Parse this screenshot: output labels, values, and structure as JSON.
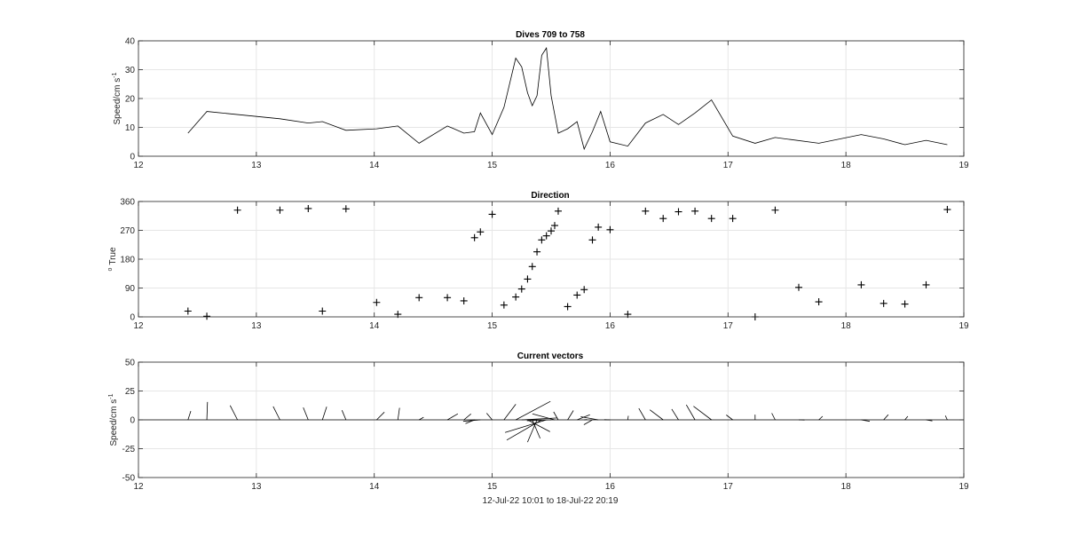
{
  "figure_xlabel": "12-Jul-22 10:01 to 18-Jul-22 20:19",
  "chart_data": [
    {
      "type": "line",
      "title": "Dives 709 to 758",
      "ylabel": "Speed/cm s",
      "ylabel_superscript": "-1",
      "xlim": [
        12,
        19
      ],
      "ylim": [
        0,
        40
      ],
      "xticks": [
        12,
        13,
        14,
        15,
        16,
        17,
        18,
        19
      ],
      "yticks": [
        0,
        10,
        20,
        30,
        40
      ],
      "grid": true,
      "color": "#000000",
      "x": [
        12.42,
        12.58,
        13.2,
        13.44,
        13.56,
        13.76,
        14.02,
        14.2,
        14.38,
        14.62,
        14.76,
        14.85,
        14.9,
        15.0,
        15.1,
        15.2,
        15.25,
        15.3,
        15.34,
        15.38,
        15.42,
        15.46,
        15.5,
        15.56,
        15.64,
        15.72,
        15.78,
        15.85,
        15.92,
        16.0,
        16.15,
        16.3,
        16.45,
        16.58,
        16.72,
        16.86,
        17.04,
        17.23,
        17.4,
        17.77,
        18.13,
        18.32,
        18.5,
        18.68,
        18.86
      ],
      "values": [
        8,
        15.5,
        13,
        11.5,
        12,
        9,
        9.5,
        10.5,
        4.5,
        10.5,
        8,
        8.5,
        15,
        7.5,
        17,
        34,
        31,
        22,
        17.5,
        21,
        35,
        37.5,
        21,
        8,
        9.5,
        12,
        2.5,
        8.5,
        15.5,
        5,
        3.5,
        11.5,
        14.5,
        11,
        15,
        19.5,
        7,
        4.5,
        6.5,
        4.5,
        7.5,
        6,
        4,
        5.5,
        4
      ]
    },
    {
      "type": "scatter",
      "title": "Direction",
      "ylabel": "True",
      "ylabel_prefix": "o",
      "xlim": [
        12,
        19
      ],
      "ylim": [
        0,
        360
      ],
      "xticks": [
        12,
        13,
        14,
        15,
        16,
        17,
        18,
        19
      ],
      "yticks": [
        0,
        90,
        180,
        270,
        360
      ],
      "grid": true,
      "marker": "+",
      "color": "#000000",
      "x": [
        12.42,
        12.58,
        12.84,
        13.2,
        13.44,
        13.56,
        13.76,
        14.02,
        14.2,
        14.38,
        14.62,
        14.76,
        14.85,
        14.9,
        15.0,
        15.1,
        15.2,
        15.25,
        15.3,
        15.34,
        15.38,
        15.42,
        15.46,
        15.5,
        15.53,
        15.56,
        15.64,
        15.72,
        15.78,
        15.85,
        15.9,
        16.0,
        16.15,
        16.3,
        16.45,
        16.58,
        16.72,
        16.86,
        17.04,
        17.23,
        17.4,
        17.6,
        17.77,
        18.13,
        18.32,
        18.5,
        18.68,
        18.86
      ],
      "values": [
        18,
        2,
        333,
        333,
        338,
        18,
        337,
        45,
        8,
        60,
        60,
        50,
        247,
        265,
        320,
        37,
        62,
        87,
        118,
        157,
        203,
        240,
        253,
        268,
        285,
        330,
        32,
        68,
        85,
        240,
        280,
        272,
        8,
        330,
        307,
        328,
        330,
        307,
        307,
        0,
        333,
        92,
        47,
        100,
        42,
        40,
        100,
        335
      ]
    },
    {
      "type": "vector",
      "title": "Current vectors",
      "ylabel": "Speed/cm s",
      "ylabel_superscript": "-1",
      "xlim": [
        12,
        19
      ],
      "ylim": [
        -50,
        50
      ],
      "xticks": [
        12,
        13,
        14,
        15,
        16,
        17,
        18,
        19
      ],
      "yticks": [
        -50,
        -25,
        0,
        25,
        50
      ],
      "grid": true,
      "color": "#000000",
      "x": [
        12.42,
        12.58,
        12.84,
        13.2,
        13.44,
        13.56,
        13.76,
        14.02,
        14.2,
        14.38,
        14.62,
        14.76,
        14.85,
        14.9,
        15.0,
        15.1,
        15.2,
        15.25,
        15.3,
        15.34,
        15.38,
        15.42,
        15.46,
        15.5,
        15.53,
        15.56,
        15.64,
        15.72,
        15.78,
        15.85,
        15.9,
        16.0,
        16.15,
        16.3,
        16.45,
        16.58,
        16.72,
        16.86,
        17.04,
        17.23,
        17.4,
        17.6,
        17.77,
        18.13,
        18.32,
        18.5,
        18.68,
        18.86
      ],
      "speed": [
        8,
        15.5,
        14,
        13,
        11.5,
        12,
        9,
        9.5,
        10.5,
        4.5,
        10.5,
        8,
        8.5,
        15,
        7.5,
        17,
        34,
        31,
        22,
        17.5,
        21,
        35,
        37.5,
        21,
        20,
        8,
        9.5,
        12,
        2.5,
        8.5,
        15.5,
        5,
        3.5,
        11.5,
        14.5,
        11,
        15,
        19.5,
        7,
        4.5,
        6.5,
        5,
        4.5,
        7.5,
        6,
        4,
        5.5,
        4
      ],
      "direction": [
        18,
        2,
        333,
        333,
        338,
        18,
        337,
        45,
        8,
        60,
        60,
        50,
        247,
        265,
        320,
        37,
        62,
        87,
        118,
        157,
        203,
        240,
        253,
        268,
        285,
        330,
        32,
        68,
        85,
        240,
        280,
        272,
        8,
        330,
        307,
        328,
        330,
        307,
        307,
        0,
        333,
        92,
        47,
        100,
        42,
        40,
        100,
        335
      ]
    }
  ]
}
